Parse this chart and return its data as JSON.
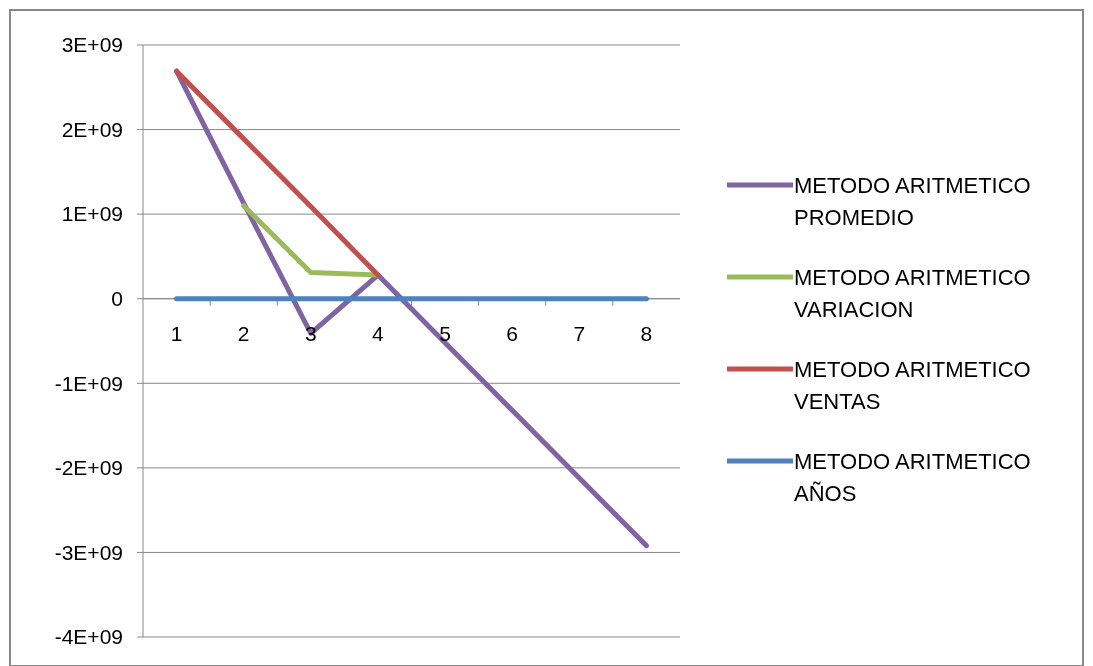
{
  "chart_data": {
    "type": "line",
    "categories": [
      "1",
      "2",
      "3",
      "4",
      "5",
      "6",
      "7",
      "8"
    ],
    "ylim": [
      -4000000000,
      3000000000
    ],
    "yticks": [
      {
        "value": -4000000000,
        "label": "-4E+09"
      },
      {
        "value": -3000000000,
        "label": "-3E+09"
      },
      {
        "value": -2000000000,
        "label": "-2E+09"
      },
      {
        "value": -1000000000,
        "label": "-1E+09"
      },
      0,
      {
        "value": 1000000000,
        "label": "1E+09"
      },
      {
        "value": 2000000000,
        "label": "2E+09"
      },
      {
        "value": 3000000000,
        "label": "3E+09"
      }
    ],
    "grid": "y",
    "legend": "right",
    "marker": "none",
    "series": [
      {
        "name": "METODO ARITMETICO PROMEDIO",
        "color": "#8064a2",
        "values": [
          2690000000,
          1130000000,
          -410000000,
          280000000,
          -520000000,
          -1320000000,
          -2120000000,
          -2920000000
        ]
      },
      {
        "name": "METODO ARITMETICO VARIACION",
        "color": "#9bbb59",
        "values": [
          null,
          1100000000,
          310000000,
          280000000,
          null,
          null,
          null,
          null
        ]
      },
      {
        "name": "METODO ARITMETICO VENTAS",
        "color": "#c0504d",
        "values": [
          2690000000,
          1890000000,
          1090000000,
          280000000,
          null,
          null,
          null,
          null
        ]
      },
      {
        "name": "METODO ARITMETICO AÑOS",
        "color": "#4f81bd",
        "values": [
          0,
          0,
          0,
          0,
          0,
          0,
          0,
          0
        ]
      }
    ]
  }
}
